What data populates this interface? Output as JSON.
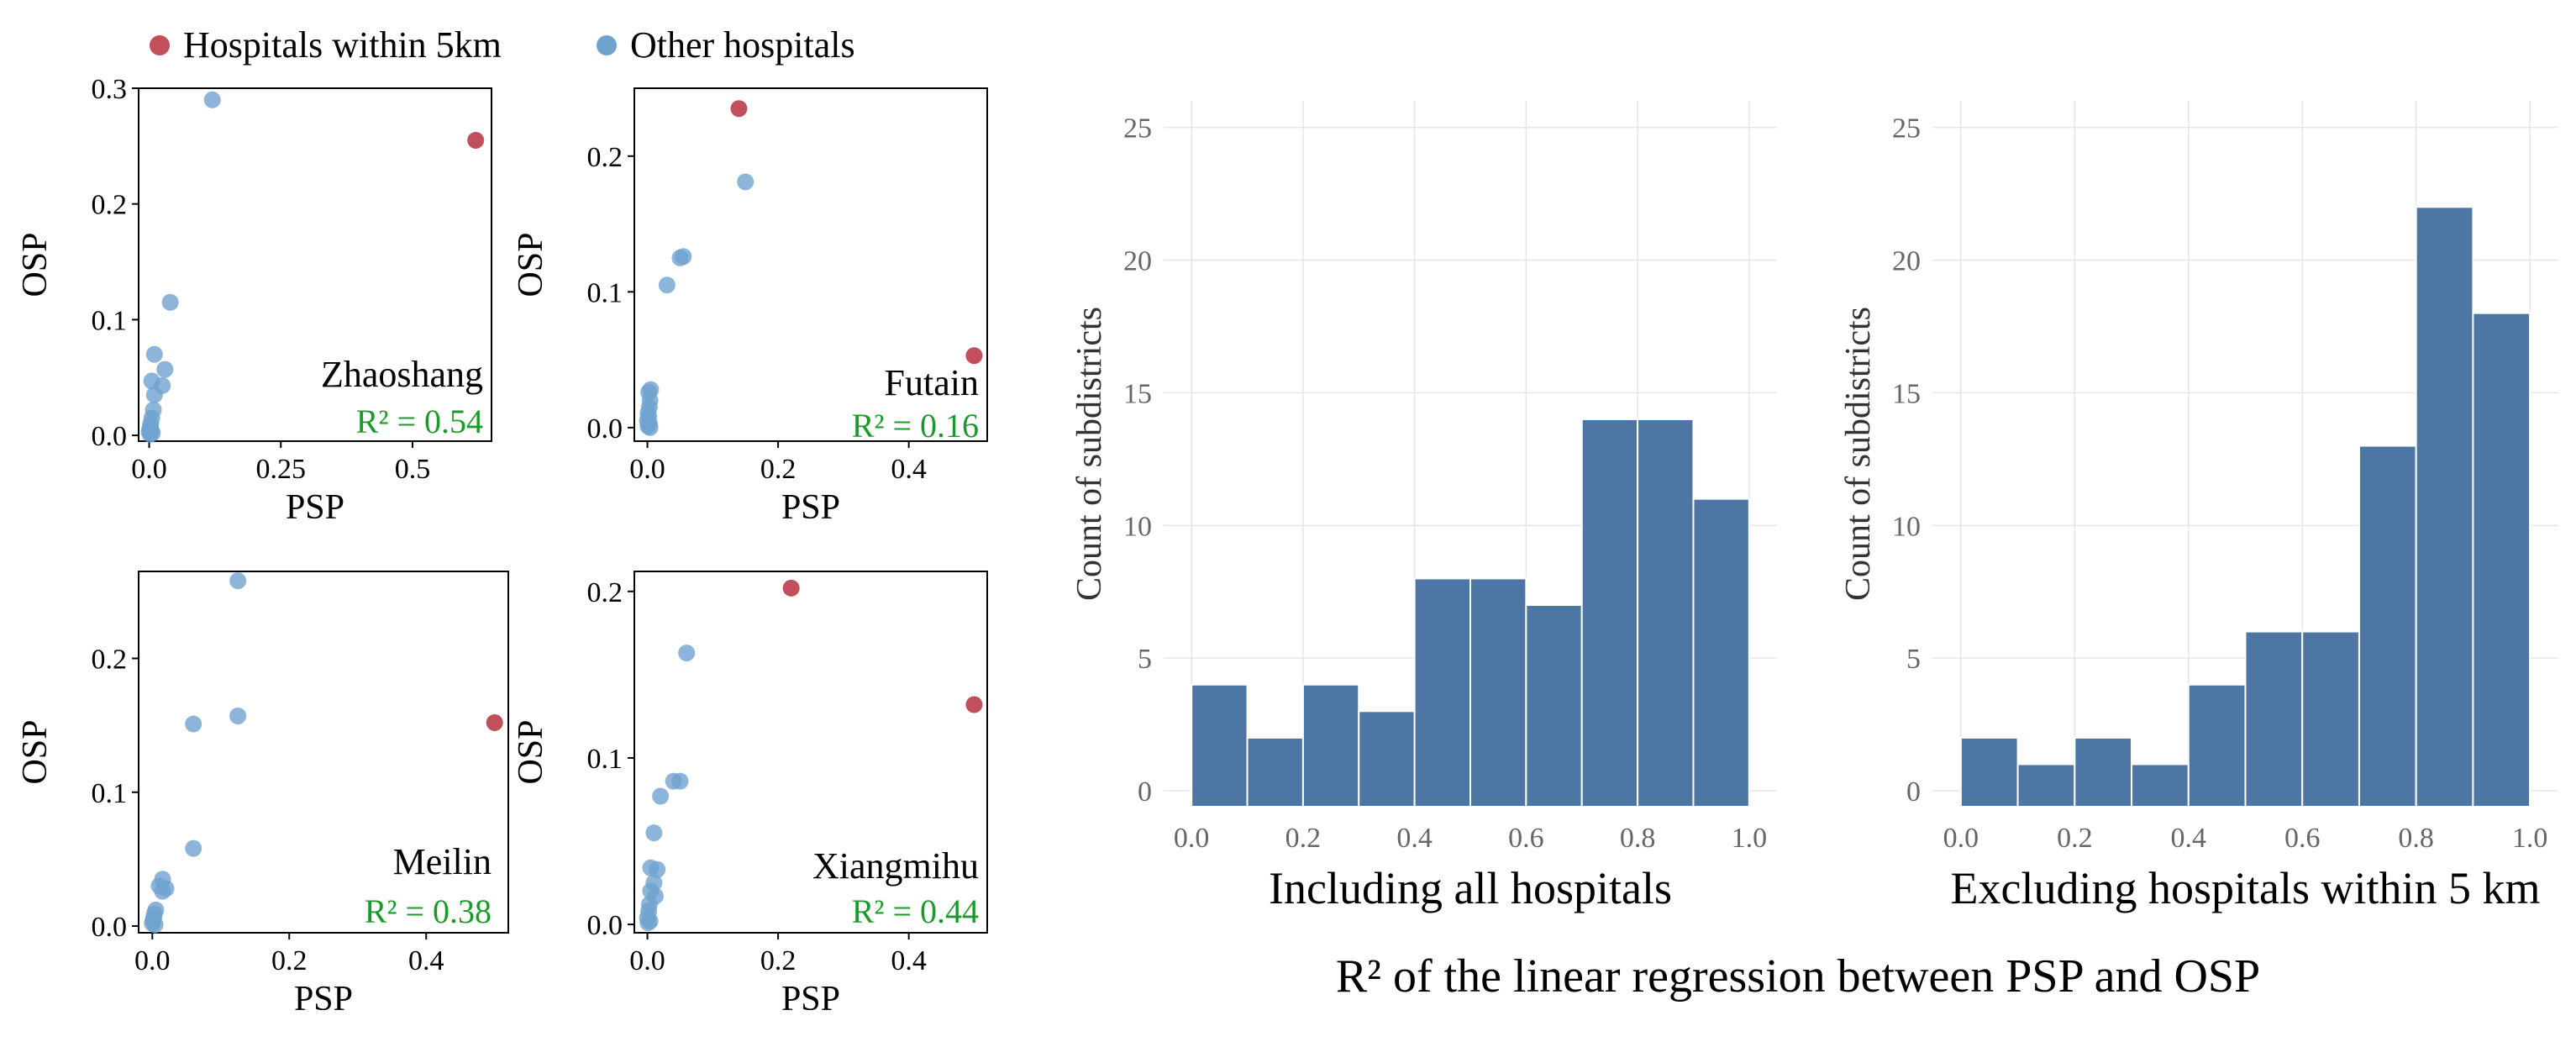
{
  "legend": [
    {
      "label": "Hospitals within 5km",
      "color": "#c14f5c"
    },
    {
      "label": "Other hospitals",
      "color": "#6fa3cf"
    }
  ],
  "colors": {
    "highlight": "#c14f5c",
    "other": "#6fa3cf",
    "bar": "#4e76a4",
    "r2": "#1a9a2a"
  },
  "caption": "R² of the linear regression between PSP and OSP",
  "chart_data": [
    {
      "type": "scatter",
      "name": "Zhaoshang",
      "xlabel": "PSP",
      "ylabel": "OSP",
      "r2_label": "R² = 0.54",
      "xlim": [
        -0.02,
        0.65
      ],
      "ylim": [
        -0.005,
        0.3
      ],
      "xticks": [
        0,
        0.25,
        0.5
      ],
      "xtick_labels": [
        "0.0",
        "0.25",
        "0.5"
      ],
      "yticks": [
        0,
        0.1,
        0.2,
        0.3
      ],
      "ytick_labels": [
        "0.0",
        "0.1",
        "0.2",
        "0.3"
      ],
      "highlight": [
        [
          0.62,
          0.255
        ]
      ],
      "other": [
        [
          0.12,
          0.29
        ],
        [
          0.04,
          0.115
        ],
        [
          0.01,
          0.07
        ],
        [
          0.03,
          0.057
        ],
        [
          0.005,
          0.047
        ],
        [
          0.025,
          0.043
        ],
        [
          0.01,
          0.035
        ],
        [
          0.008,
          0.022
        ],
        [
          0.005,
          0.015
        ],
        [
          0.003,
          0.01
        ],
        [
          0.002,
          0.007
        ],
        [
          0.001,
          0.005
        ],
        [
          0.004,
          0.004
        ],
        [
          0.0,
          0.003
        ],
        [
          0.006,
          0.002
        ],
        [
          0.002,
          0.001
        ]
      ]
    },
    {
      "type": "scatter",
      "name": "Futain",
      "xlabel": "PSP",
      "ylabel": "OSP",
      "r2_label": "R² = 0.16",
      "xlim": [
        -0.02,
        0.52
      ],
      "ylim": [
        -0.01,
        0.25
      ],
      "xticks": [
        0,
        0.2,
        0.4
      ],
      "xtick_labels": [
        "0.0",
        "0.2",
        "0.4"
      ],
      "yticks": [
        0,
        0.1,
        0.2
      ],
      "ytick_labels": [
        "0.0",
        "0.1",
        "0.2"
      ],
      "highlight": [
        [
          0.14,
          0.235
        ],
        [
          0.5,
          0.053
        ]
      ],
      "other": [
        [
          0.15,
          0.181
        ],
        [
          0.055,
          0.126
        ],
        [
          0.05,
          0.125
        ],
        [
          0.03,
          0.105
        ],
        [
          0.005,
          0.028
        ],
        [
          0.002,
          0.026
        ],
        [
          0.004,
          0.02
        ],
        [
          0.003,
          0.015
        ],
        [
          0.001,
          0.011
        ],
        [
          0.002,
          0.008
        ],
        [
          0.0,
          0.005
        ],
        [
          0.003,
          0.003
        ],
        [
          0.001,
          0.001
        ],
        [
          0.004,
          0.0
        ]
      ]
    },
    {
      "type": "scatter",
      "name": "Meilin",
      "xlabel": "PSP",
      "ylabel": "OSP",
      "r2_label": "R² = 0.38",
      "xlim": [
        -0.02,
        0.52
      ],
      "ylim": [
        -0.005,
        0.265
      ],
      "xticks": [
        0,
        0.2,
        0.4
      ],
      "xtick_labels": [
        "0.0",
        "0.2",
        "0.4"
      ],
      "yticks": [
        0,
        0.1,
        0.2
      ],
      "ytick_labels": [
        "0.0",
        "0.1",
        "0.2"
      ],
      "highlight": [
        [
          0.5,
          0.152
        ]
      ],
      "other": [
        [
          0.125,
          0.258
        ],
        [
          0.125,
          0.157
        ],
        [
          0.06,
          0.151
        ],
        [
          0.06,
          0.058
        ],
        [
          0.015,
          0.035
        ],
        [
          0.01,
          0.03
        ],
        [
          0.02,
          0.028
        ],
        [
          0.015,
          0.026
        ],
        [
          0.005,
          0.012
        ],
        [
          0.003,
          0.009
        ],
        [
          0.002,
          0.006
        ],
        [
          0.001,
          0.004
        ],
        [
          0.0,
          0.002
        ],
        [
          0.004,
          0.001
        ]
      ]
    },
    {
      "type": "scatter",
      "name": "Xiangmihu",
      "xlabel": "PSP",
      "ylabel": "OSP",
      "r2_label": "R² = 0.44",
      "xlim": [
        -0.02,
        0.52
      ],
      "ylim": [
        -0.005,
        0.212
      ],
      "xticks": [
        0,
        0.2,
        0.4
      ],
      "xtick_labels": [
        "0.0",
        "0.2",
        "0.4"
      ],
      "yticks": [
        0,
        0.1,
        0.2
      ],
      "ytick_labels": [
        "0.0",
        "0.1",
        "0.2"
      ],
      "highlight": [
        [
          0.22,
          0.202
        ],
        [
          0.5,
          0.132
        ]
      ],
      "other": [
        [
          0.06,
          0.163
        ],
        [
          0.05,
          0.086
        ],
        [
          0.04,
          0.086
        ],
        [
          0.02,
          0.077
        ],
        [
          0.01,
          0.055
        ],
        [
          0.005,
          0.034
        ],
        [
          0.015,
          0.033
        ],
        [
          0.01,
          0.025
        ],
        [
          0.005,
          0.02
        ],
        [
          0.012,
          0.017
        ],
        [
          0.003,
          0.012
        ],
        [
          0.002,
          0.008
        ],
        [
          0.0,
          0.004
        ],
        [
          0.004,
          0.002
        ],
        [
          0.001,
          0.001
        ]
      ]
    },
    {
      "type": "bar",
      "name": "hist-all",
      "xlabel": "Including all hospitals",
      "ylabel": "Count of subdistricts",
      "bin_edges": [
        0.0,
        0.1,
        0.2,
        0.3,
        0.4,
        0.5,
        0.6,
        0.7,
        0.8,
        0.9,
        1.0
      ],
      "values": [
        4,
        2,
        4,
        3,
        8,
        8,
        7,
        14,
        14,
        11
      ],
      "xlim": [
        -0.05,
        1.05
      ],
      "ylim": [
        -0.6,
        26
      ],
      "xticks": [
        0,
        0.2,
        0.4,
        0.6,
        0.8,
        1.0
      ],
      "xtick_labels": [
        "0.0",
        "0.2",
        "0.4",
        "0.6",
        "0.8",
        "1.0"
      ],
      "yticks": [
        0,
        5,
        10,
        15,
        20,
        25
      ],
      "ytick_labels": [
        "0",
        "5",
        "10",
        "15",
        "20",
        "25"
      ]
    },
    {
      "type": "bar",
      "name": "hist-excl",
      "xlabel": "Excluding hospitals within 5 km",
      "ylabel": "Count of subdistricts",
      "bin_edges": [
        0.0,
        0.1,
        0.2,
        0.3,
        0.4,
        0.5,
        0.6,
        0.7,
        0.8,
        0.9,
        1.0
      ],
      "values": [
        2,
        1,
        2,
        1,
        4,
        6,
        6,
        13,
        22,
        18
      ],
      "xlim": [
        -0.05,
        1.05
      ],
      "ylim": [
        -0.6,
        26
      ],
      "xticks": [
        0,
        0.2,
        0.4,
        0.6,
        0.8,
        1.0
      ],
      "xtick_labels": [
        "0.0",
        "0.2",
        "0.4",
        "0.6",
        "0.8",
        "1.0"
      ],
      "yticks": [
        0,
        5,
        10,
        15,
        20,
        25
      ],
      "ytick_labels": [
        "0",
        "5",
        "10",
        "15",
        "20",
        "25"
      ]
    }
  ]
}
